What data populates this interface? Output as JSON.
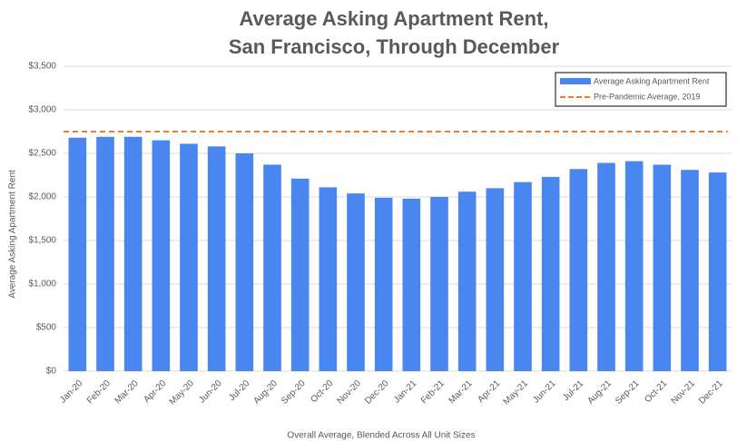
{
  "chart_data": {
    "type": "bar",
    "title": [
      "Average Asking Apartment Rent,",
      "San Francisco, Through December"
    ],
    "ylabel": "Average Asking Apartment  Rent",
    "xlabel": "Overall Average, Blended Across All Unit Sizes",
    "categories": [
      "Jan-20",
      "Feb-20",
      "Mar-20",
      "Apr-20",
      "May-20",
      "Jun-20",
      "Jul-20",
      "Aug-20",
      "Sep-20",
      "Oct-20",
      "Nov-20",
      "Dec-20",
      "Jan-21",
      "Feb-21",
      "Mar-21",
      "Apr-21",
      "May-21",
      "Jun-21",
      "Jul-21",
      "Aug-21",
      "Sep-21",
      "Oct-21",
      "Nov-21",
      "Dec-21"
    ],
    "series": [
      {
        "name": "Average Asking Apartment Rent",
        "color": "#4a86f0",
        "values": [
          2680,
          2690,
          2690,
          2650,
          2610,
          2580,
          2500,
          2370,
          2210,
          2110,
          2040,
          1990,
          1980,
          2000,
          2060,
          2100,
          2170,
          2230,
          2320,
          2390,
          2410,
          2370,
          2310,
          2280
        ]
      }
    ],
    "reference_line": {
      "name": "Pre-Pandemic Average, 2019",
      "value": 2750,
      "color": "#ed7d31"
    },
    "ylim": [
      0,
      3500
    ],
    "yticks": [
      {
        "value": 0,
        "label": "$0"
      },
      {
        "value": 500,
        "label": "$500"
      },
      {
        "value": 1000,
        "label": "$1,000"
      },
      {
        "value": 1500,
        "label": "$1,500"
      },
      {
        "value": 2000,
        "label": "$2,000"
      },
      {
        "value": 2500,
        "label": "$2,500"
      },
      {
        "value": 3000,
        "label": "$3,000"
      },
      {
        "value": 3500,
        "label": "$3,500"
      }
    ],
    "grid": true,
    "legend": "top-right"
  }
}
